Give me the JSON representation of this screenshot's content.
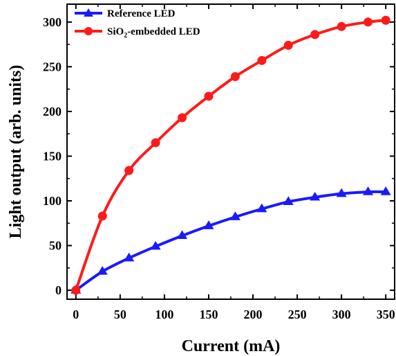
{
  "chart_data": {
    "type": "line",
    "title": "",
    "xlabel": "Current (mA)",
    "ylabel": "Light output (arb. units)",
    "xlim": [
      -10,
      360
    ],
    "ylim": [
      -10,
      320
    ],
    "xticks": [
      0,
      50,
      100,
      150,
      200,
      250,
      300,
      350
    ],
    "yticks": [
      0,
      50,
      100,
      150,
      200,
      250,
      300
    ],
    "xtick_labels": [
      "0",
      "50",
      "100",
      "150",
      "200",
      "250",
      "300",
      "350"
    ],
    "ytick_labels": [
      "0",
      "50",
      "100",
      "150",
      "200",
      "250",
      "300"
    ],
    "grid": false,
    "legend_position": "top-left",
    "x": [
      0,
      30,
      60,
      90,
      120,
      150,
      180,
      210,
      240,
      270,
      300,
      330,
      350
    ],
    "series": [
      {
        "name": "Reference LED",
        "marker": "triangle",
        "color": "#1a1aff",
        "values": [
          0,
          21,
          36,
          49,
          61,
          72,
          82,
          91,
          99,
          104,
          108,
          110,
          110
        ]
      },
      {
        "name_prefix": "SiO",
        "name_subscript": "2",
        "name_suffix": "-embedded LED",
        "marker": "circle",
        "color": "#ff1a1a",
        "values": [
          0,
          83,
          134,
          165,
          193,
          217,
          239,
          257,
          274,
          286,
          295,
          300,
          302
        ]
      }
    ]
  }
}
